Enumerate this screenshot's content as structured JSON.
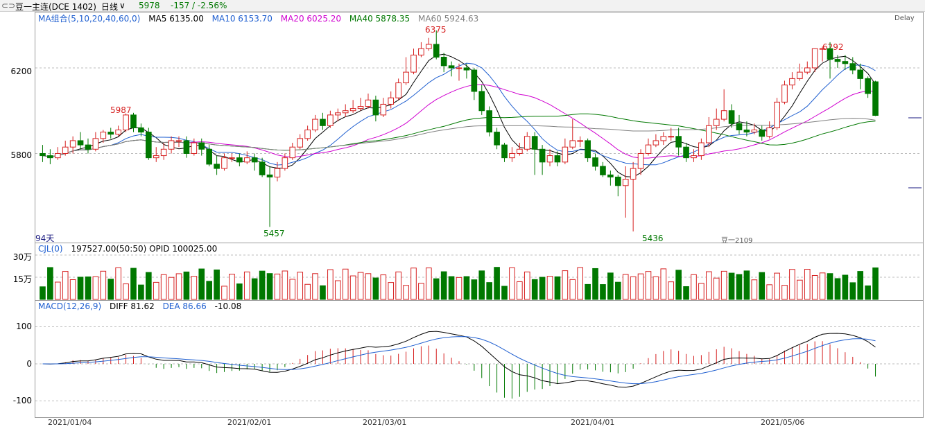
{
  "topbar": {
    "symbol": "豆一主连(DCE 1402)",
    "period": "日线",
    "period_arrow": "∨",
    "last": "5978",
    "change": "-157 / -2.56%"
  },
  "price_panel": {
    "ma_title": "MA组合(5,10,20,40,60,0)",
    "ma5": "MA5 6135.00",
    "ma10": "MA10 6153.70",
    "ma20": "MA20 6025.20",
    "ma40": "MA40 5878.35",
    "ma60": "MA60 5924.63",
    "delay": "Delay",
    "y_ticks": [
      "6200",
      "5800"
    ],
    "labels": {
      "high1": "5987",
      "high2": "6375",
      "high3": "6292",
      "low1": "5457",
      "low2": "5436",
      "days": "94天",
      "contract": "豆一2109"
    }
  },
  "volume_panel": {
    "title": "CJL(0)",
    "values": "197527.00(50:50)  OPID 100025.00",
    "y_ticks": [
      "30万",
      "15万"
    ]
  },
  "macd_panel": {
    "title": "MACD(12,26,9)",
    "diff": "DIFF 81.62",
    "dea": "DEA 86.66",
    "macd": "-10.08",
    "y_ticks": [
      "100",
      "0",
      "-100"
    ]
  },
  "x_axis": [
    "2021/01/04",
    "2021/02/01",
    "2021/03/01",
    "2021/04/01",
    "2021/05/06"
  ],
  "colors": {
    "up": "#d62020",
    "down": "#007800",
    "ma5": "#000000",
    "ma10": "#1f5fd0",
    "ma20": "#d000d0",
    "ma40": "#007800",
    "ma60": "#808080"
  },
  "chart_data": {
    "type": "candlestick",
    "candles": [
      [
        5800,
        5790,
        5840,
        5760
      ],
      [
        5790,
        5780,
        5820,
        5750
      ],
      [
        5780,
        5800,
        5830,
        5770
      ],
      [
        5800,
        5830,
        5860,
        5790
      ],
      [
        5830,
        5860,
        5880,
        5800
      ],
      [
        5860,
        5840,
        5900,
        5820
      ],
      [
        5840,
        5820,
        5870,
        5800
      ],
      [
        5820,
        5870,
        5900,
        5810
      ],
      [
        5870,
        5900,
        5910,
        5850
      ],
      [
        5900,
        5890,
        5920,
        5870
      ],
      [
        5890,
        5910,
        5930,
        5880
      ],
      [
        5910,
        5980,
        5987,
        5900
      ],
      [
        5980,
        5920,
        5990,
        5900
      ],
      [
        5920,
        5900,
        5940,
        5880
      ],
      [
        5900,
        5780,
        5920,
        5770
      ],
      [
        5780,
        5790,
        5830,
        5760
      ],
      [
        5790,
        5820,
        5850,
        5770
      ],
      [
        5820,
        5860,
        5880,
        5800
      ],
      [
        5860,
        5860,
        5880,
        5830
      ],
      [
        5860,
        5800,
        5880,
        5780
      ],
      [
        5800,
        5850,
        5870,
        5790
      ],
      [
        5850,
        5820,
        5870,
        5790
      ],
      [
        5820,
        5750,
        5840,
        5740
      ],
      [
        5750,
        5730,
        5790,
        5700
      ],
      [
        5730,
        5780,
        5800,
        5720
      ],
      [
        5780,
        5780,
        5800,
        5760
      ],
      [
        5780,
        5760,
        5800,
        5740
      ],
      [
        5760,
        5780,
        5810,
        5750
      ],
      [
        5780,
        5760,
        5800,
        5720
      ],
      [
        5760,
        5700,
        5780,
        5690
      ],
      [
        5700,
        5690,
        5740,
        5457
      ],
      [
        5690,
        5730,
        5760,
        5670
      ],
      [
        5730,
        5780,
        5800,
        5720
      ],
      [
        5780,
        5830,
        5850,
        5770
      ],
      [
        5830,
        5870,
        5890,
        5820
      ],
      [
        5870,
        5910,
        5930,
        5860
      ],
      [
        5910,
        5960,
        5980,
        5900
      ],
      [
        5960,
        5930,
        5990,
        5910
      ],
      [
        5930,
        5980,
        6000,
        5920
      ],
      [
        5980,
        5990,
        6010,
        5950
      ],
      [
        5990,
        6000,
        6030,
        5970
      ],
      [
        6000,
        6010,
        6050,
        5990
      ],
      [
        6010,
        6020,
        6060,
        6000
      ],
      [
        6020,
        6050,
        6080,
        6010
      ],
      [
        6050,
        5980,
        6070,
        5950
      ],
      [
        5980,
        6030,
        6060,
        5970
      ],
      [
        6030,
        6060,
        6090,
        6010
      ],
      [
        6060,
        6130,
        6150,
        6050
      ],
      [
        6130,
        6180,
        6250,
        6120
      ],
      [
        6180,
        6260,
        6290,
        6170
      ],
      [
        6260,
        6290,
        6320,
        6250
      ],
      [
        6290,
        6310,
        6340,
        6280
      ],
      [
        6310,
        6250,
        6375,
        6240
      ],
      [
        6250,
        6210,
        6270,
        6180
      ],
      [
        6210,
        6200,
        6230,
        6160
      ],
      [
        6200,
        6200,
        6220,
        6140
      ],
      [
        6200,
        6190,
        6220,
        6150
      ],
      [
        6190,
        6090,
        6200,
        6050
      ],
      [
        6090,
        6000,
        6120,
        5980
      ],
      [
        6000,
        5900,
        6020,
        5880
      ],
      [
        5900,
        5840,
        5920,
        5820
      ],
      [
        5840,
        5780,
        5850,
        5760
      ],
      [
        5780,
        5800,
        5830,
        5760
      ],
      [
        5800,
        5820,
        5850,
        5790
      ],
      [
        5820,
        5880,
        5900,
        5810
      ],
      [
        5880,
        5820,
        5900,
        5700
      ],
      [
        5820,
        5760,
        5840,
        5700
      ],
      [
        5760,
        5790,
        5820,
        5740
      ],
      [
        5790,
        5760,
        5810,
        5740
      ],
      [
        5760,
        5830,
        5870,
        5750
      ],
      [
        5830,
        5860,
        5960,
        5820
      ],
      [
        5860,
        5860,
        5880,
        5830
      ],
      [
        5860,
        5780,
        5870,
        5760
      ],
      [
        5780,
        5740,
        5800,
        5720
      ],
      [
        5740,
        5700,
        5760,
        5690
      ],
      [
        5700,
        5690,
        5720,
        5650
      ],
      [
        5690,
        5650,
        5700,
        5600
      ],
      [
        5650,
        5680,
        5740,
        5500
      ],
      [
        5680,
        5730,
        5760,
        5436
      ],
      [
        5730,
        5800,
        5820,
        5700
      ],
      [
        5800,
        5840,
        5870,
        5790
      ],
      [
        5840,
        5860,
        5890,
        5830
      ],
      [
        5860,
        5880,
        5900,
        5840
      ],
      [
        5880,
        5880,
        5920,
        5860
      ],
      [
        5880,
        5830,
        5920,
        5790
      ],
      [
        5830,
        5780,
        5850,
        5760
      ],
      [
        5780,
        5790,
        5820,
        5760
      ],
      [
        5790,
        5850,
        5870,
        5770
      ],
      [
        5850,
        5930,
        5970,
        5830
      ],
      [
        5930,
        5960,
        6010,
        5910
      ],
      [
        5960,
        6000,
        6100,
        5950
      ],
      [
        6000,
        5940,
        6030,
        5920
      ],
      [
        5940,
        5910,
        5980,
        5890
      ],
      [
        5910,
        5900,
        5950,
        5880
      ],
      [
        5900,
        5910,
        5940,
        5890
      ],
      [
        5910,
        5880,
        5930,
        5860
      ],
      [
        5880,
        5920,
        5950,
        5870
      ],
      [
        5920,
        6040,
        6060,
        5910
      ],
      [
        6040,
        6120,
        6140,
        6030
      ],
      [
        6120,
        6150,
        6180,
        6100
      ],
      [
        6150,
        6180,
        6220,
        6140
      ],
      [
        6180,
        6200,
        6230,
        6170
      ],
      [
        6200,
        6290,
        6292,
        6180
      ],
      [
        6290,
        6290,
        6300,
        6230
      ],
      [
        6290,
        6240,
        6320,
        6150
      ],
      [
        6240,
        6230,
        6260,
        6200
      ],
      [
        6230,
        6220,
        6260,
        6190
      ],
      [
        6220,
        6190,
        6250,
        6170
      ],
      [
        6190,
        6150,
        6220,
        6100
      ],
      [
        6150,
        6080,
        6160,
        6060
      ],
      [
        6135,
        5978,
        6140,
        5975
      ]
    ],
    "y_range": [
      5400,
      6420
    ],
    "volume_ticks": [
      "30万",
      "15万"
    ],
    "macd_range": [
      -130,
      140
    ]
  }
}
